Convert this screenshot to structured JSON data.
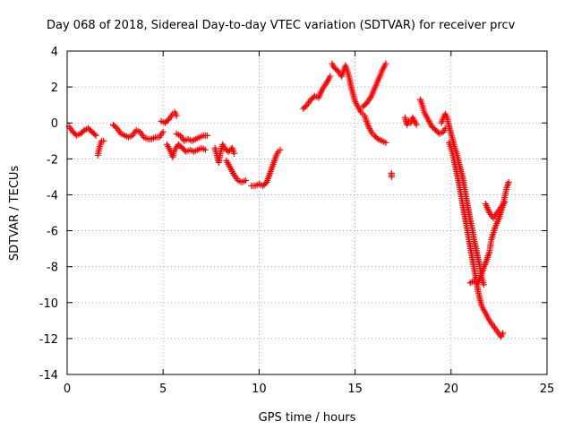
{
  "chart_data": {
    "type": "scatter",
    "title": "Day 068 of 2018, Sidereal Day-to-day VTEC variation (SDTVAR) for receiver prcv",
    "xlabel": "GPS time / hours",
    "ylabel": "SDTVAR / TECUs",
    "xlim": [
      0,
      25
    ],
    "ylim": [
      -14,
      4
    ],
    "xticks": [
      0,
      5,
      10,
      15,
      20,
      25
    ],
    "yticks": [
      -14,
      -12,
      -10,
      -8,
      -6,
      -4,
      -2,
      0,
      2,
      4
    ],
    "grid": true,
    "marker": "+",
    "color": "#ff0000",
    "series": [
      {
        "name": "SDTVAR",
        "segments": [
          [
            [
              0.1,
              -0.2
            ],
            [
              0.3,
              -0.5
            ],
            [
              0.5,
              -0.7
            ],
            [
              0.7,
              -0.6
            ],
            [
              0.9,
              -0.4
            ],
            [
              1.1,
              -0.3
            ],
            [
              1.3,
              -0.5
            ],
            [
              1.5,
              -0.7
            ]
          ],
          [
            [
              1.6,
              -1.8
            ],
            [
              1.7,
              -1.3
            ],
            [
              1.8,
              -1.0
            ],
            [
              1.9,
              -1.0
            ]
          ],
          [
            [
              2.4,
              -0.1
            ],
            [
              2.6,
              -0.3
            ],
            [
              2.8,
              -0.6
            ],
            [
              3.0,
              -0.7
            ],
            [
              3.2,
              -0.8
            ],
            [
              3.4,
              -0.7
            ],
            [
              3.6,
              -0.4
            ],
            [
              3.8,
              -0.5
            ],
            [
              4.0,
              -0.8
            ],
            [
              4.2,
              -0.9
            ],
            [
              4.4,
              -0.9
            ],
            [
              4.6,
              -0.8
            ],
            [
              4.8,
              -0.8
            ],
            [
              5.0,
              -0.5
            ]
          ],
          [
            [
              4.9,
              0.1
            ],
            [
              5.1,
              0.0
            ],
            [
              5.3,
              0.2
            ],
            [
              5.5,
              0.5
            ],
            [
              5.6,
              0.6
            ],
            [
              5.7,
              0.4
            ]
          ],
          [
            [
              5.2,
              -1.2
            ],
            [
              5.4,
              -1.6
            ],
            [
              5.5,
              -1.9
            ],
            [
              5.6,
              -1.5
            ],
            [
              5.8,
              -1.2
            ],
            [
              6.0,
              -1.4
            ],
            [
              6.2,
              -1.6
            ],
            [
              6.4,
              -1.5
            ],
            [
              6.6,
              -1.6
            ],
            [
              6.8,
              -1.5
            ],
            [
              7.0,
              -1.4
            ],
            [
              7.2,
              -1.5
            ]
          ],
          [
            [
              5.7,
              -0.6
            ],
            [
              5.9,
              -0.7
            ],
            [
              6.1,
              -1.0
            ],
            [
              6.3,
              -0.9
            ],
            [
              6.5,
              -1.0
            ],
            [
              6.7,
              -0.9
            ],
            [
              6.9,
              -0.8
            ],
            [
              7.1,
              -0.7
            ],
            [
              7.3,
              -0.7
            ]
          ],
          [
            [
              7.7,
              -1.4
            ],
            [
              7.8,
              -1.8
            ],
            [
              7.9,
              -2.2
            ],
            [
              8.0,
              -1.6
            ],
            [
              8.1,
              -1.2
            ],
            [
              8.2,
              -1.4
            ],
            [
              8.4,
              -1.6
            ],
            [
              8.6,
              -1.4
            ],
            [
              8.7,
              -1.7
            ]
          ],
          [
            [
              8.3,
              -2.1
            ],
            [
              8.5,
              -2.5
            ],
            [
              8.7,
              -2.9
            ],
            [
              8.9,
              -3.2
            ],
            [
              9.1,
              -3.3
            ],
            [
              9.3,
              -3.2
            ]
          ],
          [
            [
              9.6,
              -3.5
            ],
            [
              9.8,
              -3.5
            ],
            [
              10.0,
              -3.4
            ],
            [
              10.2,
              -3.5
            ],
            [
              10.4,
              -3.3
            ],
            [
              10.5,
              -3.0
            ],
            [
              10.6,
              -2.7
            ],
            [
              10.7,
              -2.4
            ],
            [
              10.8,
              -2.1
            ],
            [
              10.9,
              -1.8
            ],
            [
              11.0,
              -1.6
            ],
            [
              11.1,
              -1.5
            ]
          ],
          [
            [
              12.3,
              0.8
            ],
            [
              12.5,
              1.0
            ],
            [
              12.7,
              1.3
            ],
            [
              12.9,
              1.5
            ],
            [
              13.1,
              1.4
            ],
            [
              13.3,
              1.9
            ],
            [
              13.5,
              2.2
            ],
            [
              13.7,
              2.6
            ]
          ],
          [
            [
              13.8,
              3.3
            ],
            [
              13.9,
              3.1
            ],
            [
              14.1,
              2.9
            ],
            [
              14.3,
              2.6
            ],
            [
              14.5,
              3.2
            ],
            [
              14.6,
              2.9
            ],
            [
              14.7,
              2.5
            ],
            [
              14.8,
              2.0
            ],
            [
              14.9,
              1.6
            ],
            [
              15.0,
              1.2
            ],
            [
              15.1,
              1.0
            ],
            [
              15.2,
              0.8
            ],
            [
              15.3,
              0.6
            ],
            [
              15.4,
              0.5
            ],
            [
              15.5,
              0.4
            ],
            [
              15.6,
              0.1
            ],
            [
              15.7,
              -0.2
            ],
            [
              15.8,
              -0.4
            ],
            [
              15.9,
              -0.6
            ],
            [
              16.0,
              -0.7
            ],
            [
              16.2,
              -0.9
            ],
            [
              16.4,
              -1.0
            ],
            [
              16.6,
              -1.1
            ]
          ],
          [
            [
              15.4,
              0.9
            ],
            [
              15.6,
              1.1
            ],
            [
              15.8,
              1.4
            ],
            [
              15.9,
              1.6
            ],
            [
              16.0,
              1.9
            ],
            [
              16.1,
              2.1
            ],
            [
              16.2,
              2.4
            ],
            [
              16.3,
              2.6
            ],
            [
              16.4,
              2.9
            ],
            [
              16.5,
              3.1
            ],
            [
              16.6,
              3.3
            ]
          ],
          [
            [
              16.9,
              -2.8
            ],
            [
              16.9,
              -3.0
            ]
          ],
          [
            [
              17.6,
              0.3
            ],
            [
              17.7,
              -0.1
            ],
            [
              17.8,
              0.1
            ],
            [
              17.9,
              0.0
            ],
            [
              18.0,
              0.3
            ],
            [
              18.1,
              0.1
            ],
            [
              18.2,
              -0.1
            ]
          ],
          [
            [
              18.4,
              1.3
            ],
            [
              18.5,
              1.0
            ],
            [
              18.6,
              0.6
            ],
            [
              18.8,
              0.2
            ],
            [
              19.0,
              -0.2
            ],
            [
              19.2,
              -0.4
            ],
            [
              19.4,
              -0.6
            ],
            [
              19.6,
              -0.5
            ],
            [
              19.7,
              -0.3
            ]
          ],
          [
            [
              19.5,
              0.0
            ],
            [
              19.6,
              0.3
            ],
            [
              19.7,
              0.5
            ],
            [
              19.8,
              0.3
            ],
            [
              19.9,
              -0.2
            ],
            [
              20.0,
              -0.6
            ],
            [
              20.1,
              -1.0
            ],
            [
              20.2,
              -1.4
            ],
            [
              20.3,
              -1.7
            ],
            [
              20.4,
              -2.2
            ],
            [
              20.5,
              -2.6
            ],
            [
              20.6,
              -3.0
            ],
            [
              20.7,
              -3.6
            ],
            [
              20.8,
              -4.2
            ],
            [
              20.9,
              -4.8
            ],
            [
              21.0,
              -5.4
            ],
            [
              21.1,
              -5.9
            ],
            [
              21.2,
              -6.5
            ],
            [
              21.3,
              -7.0
            ],
            [
              21.4,
              -7.5
            ],
            [
              21.5,
              -8.0
            ],
            [
              21.6,
              -8.6
            ],
            [
              21.7,
              -9.0
            ]
          ],
          [
            [
              19.9,
              -1.1
            ],
            [
              20.0,
              -1.4
            ],
            [
              20.1,
              -1.8
            ],
            [
              20.2,
              -2.3
            ],
            [
              20.3,
              -2.8
            ],
            [
              20.4,
              -3.3
            ],
            [
              20.5,
              -3.9
            ],
            [
              20.6,
              -4.5
            ],
            [
              20.7,
              -5.1
            ],
            [
              20.8,
              -5.7
            ],
            [
              20.9,
              -6.3
            ],
            [
              21.0,
              -6.9
            ],
            [
              21.1,
              -7.5
            ],
            [
              21.2,
              -8.1
            ],
            [
              21.3,
              -8.7
            ],
            [
              21.4,
              -9.3
            ],
            [
              21.5,
              -9.8
            ],
            [
              21.6,
              -10.2
            ],
            [
              21.8,
              -10.6
            ],
            [
              22.0,
              -11.0
            ],
            [
              22.2,
              -11.3
            ],
            [
              22.4,
              -11.6
            ],
            [
              22.6,
              -11.9
            ],
            [
              22.7,
              -11.7
            ]
          ],
          [
            [
              21.0,
              -8.9
            ],
            [
              21.2,
              -8.8
            ],
            [
              21.4,
              -8.9
            ],
            [
              21.6,
              -8.4
            ],
            [
              21.8,
              -7.8
            ],
            [
              22.0,
              -7.2
            ],
            [
              22.1,
              -6.5
            ],
            [
              22.3,
              -5.8
            ],
            [
              22.5,
              -5.3
            ],
            [
              22.7,
              -4.6
            ],
            [
              22.9,
              -3.6
            ],
            [
              23.0,
              -3.3
            ]
          ],
          [
            [
              21.8,
              -4.5
            ],
            [
              22.0,
              -5.0
            ],
            [
              22.2,
              -5.3
            ],
            [
              22.4,
              -5.0
            ],
            [
              22.6,
              -4.7
            ],
            [
              22.8,
              -4.4
            ]
          ]
        ]
      }
    ]
  }
}
